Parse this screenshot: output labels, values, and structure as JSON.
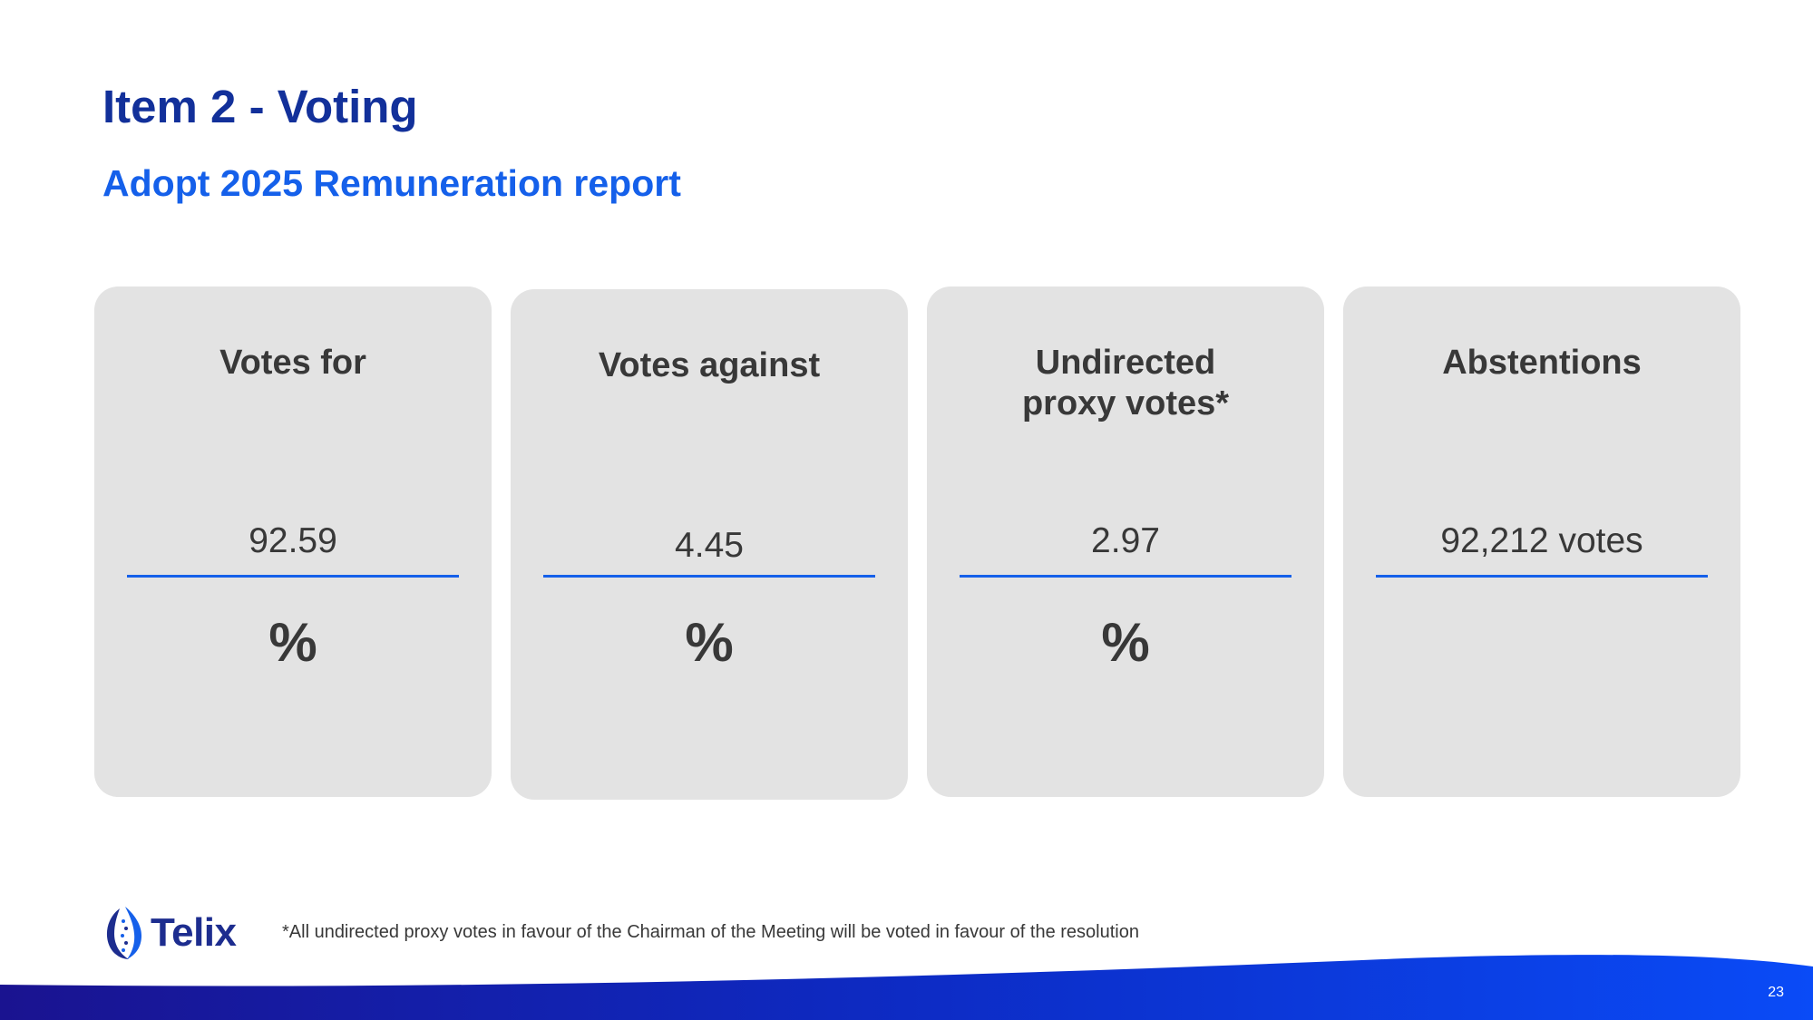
{
  "slide": {
    "title": "Item 2 - Voting",
    "subtitle": "Adopt 2025 Remuneration report",
    "footnote": "*All undirected proxy votes in favour of the Chairman of the Meeting will be voted in favour of the resolution",
    "page_number": "23"
  },
  "cards": [
    {
      "title": "Votes for",
      "value": "92.59",
      "unit": "%"
    },
    {
      "title": "Votes against",
      "value": "4.45",
      "unit": "%"
    },
    {
      "title": "Undirected\nproxy votes*",
      "value": "2.97",
      "unit": "%"
    },
    {
      "title": "Abstentions",
      "value": "92,212 votes",
      "unit": ""
    }
  ],
  "logo": {
    "text": "Telix",
    "icon": "telix-logo-icon"
  },
  "colors": {
    "title": "#12309a",
    "subtitle": "#1560ea",
    "card_background": "#e3e3e3",
    "rule": "#1560ea",
    "text": "#383838",
    "wave_start": "#1a1390",
    "wave_end": "#0a4bf7"
  }
}
